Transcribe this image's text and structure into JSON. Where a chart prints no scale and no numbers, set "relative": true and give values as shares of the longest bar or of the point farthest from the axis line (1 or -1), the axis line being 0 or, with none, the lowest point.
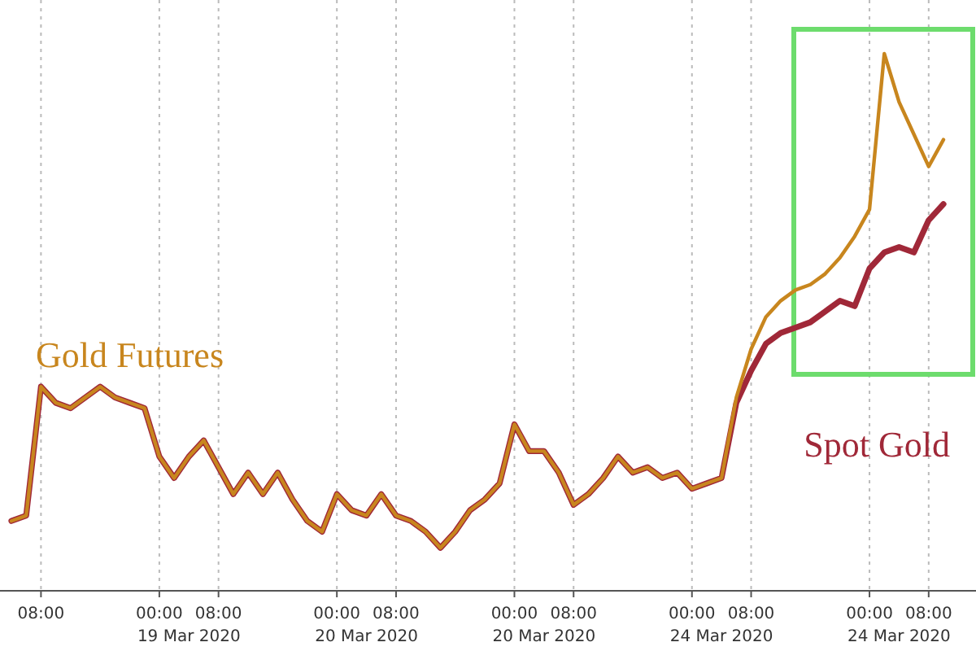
{
  "chart_data": {
    "type": "line",
    "relative": true,
    "grid": "x",
    "marker": "none",
    "line_style": "solid",
    "categories": [
      null,
      null,
      "08:00",
      null,
      null,
      null,
      null,
      null,
      null,
      null,
      "00:00",
      null,
      null,
      null,
      "08:00",
      null,
      null,
      null,
      null,
      null,
      null,
      null,
      "00:00",
      null,
      null,
      null,
      "08:00",
      null,
      null,
      null,
      null,
      null,
      null,
      null,
      "00:00",
      null,
      null,
      null,
      "08:00",
      null,
      null,
      null,
      null,
      null,
      null,
      null,
      "00:00",
      null,
      null,
      null,
      "08:00",
      null,
      null,
      null,
      null,
      null,
      null,
      null,
      "00:00",
      null,
      null,
      null,
      "08:00",
      null
    ],
    "annotations": [
      "19 Mar 2020",
      "20 Mar 2020",
      "20 Mar 2020",
      "24 Mar 2020",
      "24 Mar 2020"
    ],
    "series": [
      {
        "name": "Spot Gold",
        "color": "#a02838",
        "values": [
          0.13,
          0.14,
          0.38,
          0.35,
          0.34,
          0.36,
          0.38,
          0.36,
          0.35,
          0.34,
          0.25,
          0.21,
          0.25,
          0.28,
          0.23,
          0.18,
          0.22,
          0.18,
          0.22,
          0.17,
          0.13,
          0.11,
          0.18,
          0.15,
          0.14,
          0.18,
          0.14,
          0.13,
          0.11,
          0.08,
          0.11,
          0.15,
          0.17,
          0.2,
          0.31,
          0.26,
          0.26,
          0.22,
          0.16,
          0.18,
          0.21,
          0.25,
          0.22,
          0.23,
          0.21,
          0.22,
          0.19,
          0.2,
          0.21,
          0.35,
          0.41,
          0.46,
          0.48,
          0.49,
          0.5,
          0.52,
          0.54,
          0.53,
          0.6,
          0.63,
          0.64,
          0.63,
          0.69,
          0.72
        ]
      },
      {
        "name": "Gold Futures",
        "color": "#c8861e",
        "values": [
          0.13,
          0.14,
          0.38,
          0.35,
          0.34,
          0.36,
          0.38,
          0.36,
          0.35,
          0.34,
          0.25,
          0.21,
          0.25,
          0.28,
          0.23,
          0.18,
          0.22,
          0.18,
          0.22,
          0.17,
          0.13,
          0.11,
          0.18,
          0.15,
          0.14,
          0.18,
          0.14,
          0.13,
          0.11,
          0.08,
          0.11,
          0.15,
          0.17,
          0.2,
          0.31,
          0.26,
          0.26,
          0.22,
          0.16,
          0.18,
          0.21,
          0.25,
          0.22,
          0.23,
          0.21,
          0.22,
          0.19,
          0.2,
          0.21,
          0.36,
          0.45,
          0.51,
          0.54,
          0.56,
          0.57,
          0.59,
          0.62,
          0.66,
          0.71,
          1,
          0.91,
          0.85,
          0.79,
          0.84
        ]
      }
    ]
  }
}
